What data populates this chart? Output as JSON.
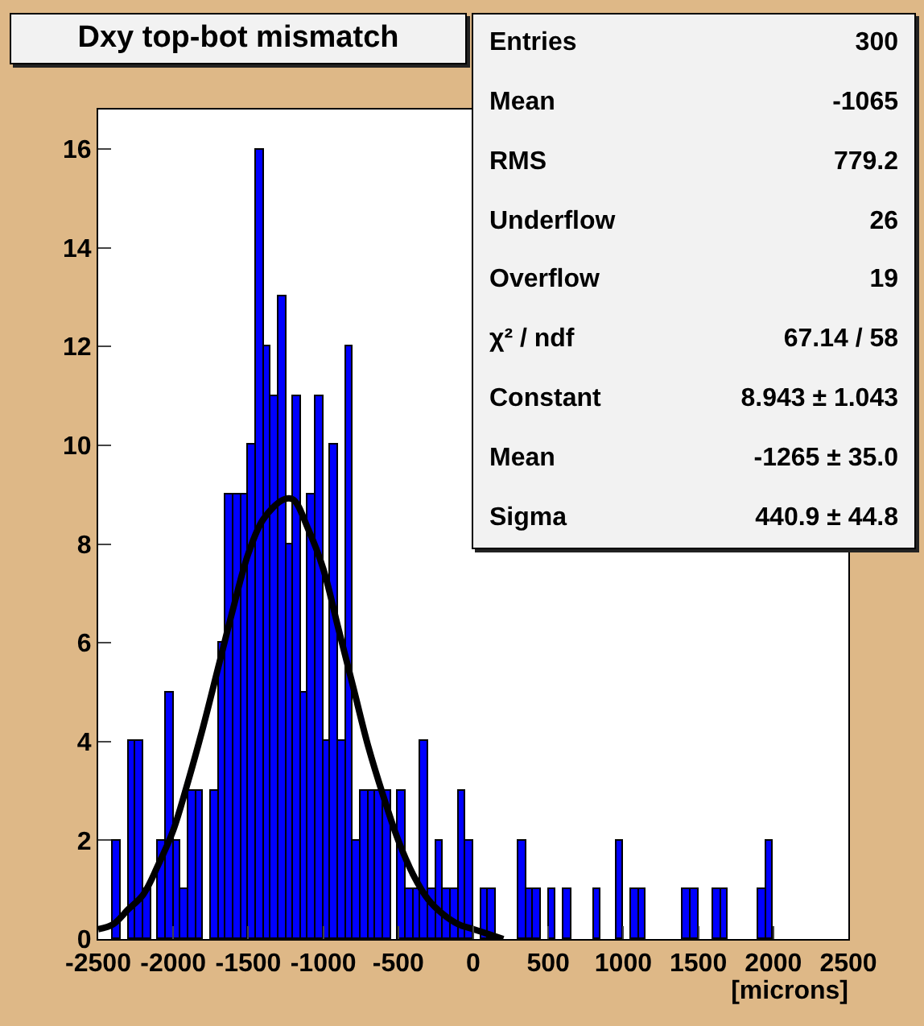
{
  "chart_data": {
    "type": "histogram",
    "title": "Dxy top-bot mismatch",
    "xlabel": "[microns]",
    "color": "#0000ff",
    "bins": [
      -2500,
      -2450,
      -2400,
      -2350,
      -2300,
      -2250,
      -2200,
      -2150,
      -2100,
      -2050,
      -2000,
      -1950,
      -1900,
      -1850,
      -1800,
      -1750,
      -1700,
      -1650,
      -1600,
      -1550,
      -1500,
      -1450,
      -1400,
      -1350,
      -1300,
      -1250,
      -1200,
      -1150,
      -1100,
      -1050,
      -1000,
      -950,
      -900,
      -850,
      -800,
      -750,
      -700,
      -650,
      -600,
      -550,
      -500,
      -450,
      -400,
      -350,
      -300,
      -250,
      -200,
      -150,
      -100,
      -50,
      0,
      50,
      100,
      150,
      200,
      250,
      300,
      350,
      400,
      450,
      500,
      550,
      600,
      650,
      700,
      750,
      800,
      850,
      900,
      950,
      1000,
      1050,
      1100,
      1150,
      1200,
      1250,
      1300,
      1350,
      1400,
      1450,
      1500,
      1550,
      1600,
      1650,
      1700,
      1750,
      1800,
      1850,
      1900,
      1950,
      2000,
      2050,
      2100,
      2150,
      2200,
      2250,
      2300,
      2350,
      2400,
      2450,
      2500
    ],
    "values": [
      0,
      0,
      2,
      0,
      4,
      4,
      1,
      0,
      2,
      5,
      2,
      1,
      3,
      3,
      0,
      3,
      6,
      9,
      9,
      9,
      10,
      16,
      12,
      11,
      13,
      8,
      11,
      5,
      9,
      11,
      4,
      10,
      4,
      12,
      2,
      3,
      3,
      3,
      3,
      0,
      3,
      1,
      1,
      4,
      1,
      2,
      1,
      1,
      3,
      2,
      0,
      1,
      1,
      0,
      0,
      0,
      2,
      1,
      1,
      0,
      1,
      0,
      1,
      0,
      0,
      0,
      1,
      0,
      0,
      2,
      0,
      1,
      1,
      0,
      0,
      0,
      0,
      0,
      1,
      1,
      0,
      0,
      1,
      1,
      0,
      0,
      0,
      0,
      1,
      2,
      0,
      0,
      0,
      0,
      0,
      0,
      0,
      0,
      0,
      0
    ],
    "series": [
      {
        "type": "line",
        "color": "#000000",
        "x": [
          -2500,
          -2400,
          -2300,
          -2200,
          -2100,
          -2000,
          -1900,
          -1800,
          -1700,
          -1600,
          -1500,
          -1400,
          -1265,
          -1200,
          -1100,
          -1000,
          -900,
          -800,
          -700,
          -600,
          -500,
          -400,
          -300,
          -200,
          -100,
          0,
          100,
          200
        ],
        "values": [
          0.2,
          0.3,
          0.6,
          0.9,
          1.5,
          2.2,
          3.2,
          4.3,
          5.5,
          6.7,
          7.8,
          8.5,
          8.9,
          8.9,
          8.3,
          7.5,
          6.3,
          5.1,
          3.9,
          2.9,
          2.0,
          1.3,
          0.8,
          0.5,
          0.3,
          0.2,
          0.1,
          0.0
        ]
      }
    ],
    "xlim": [
      -2500,
      2500
    ],
    "ylim": [
      0,
      16.8
    ],
    "xticks": [
      -2500,
      -2000,
      -1500,
      -1000,
      -500,
      0,
      500,
      1000,
      1500,
      2000,
      2500
    ],
    "yticks": [
      0,
      2,
      4,
      6,
      8,
      10,
      12,
      14,
      16
    ],
    "annotations": [
      "Entries\t300",
      "Mean\t-1065",
      "RMS\t779.2",
      "Underflow\t26",
      "Overflow\t19",
      "χ² / ndf\t67.14 / 58",
      "Constant\t8.943 ± 1.043",
      "Mean\t-1265 ± 35.0",
      "Sigma\t440.9 ± 44.8"
    ]
  }
}
